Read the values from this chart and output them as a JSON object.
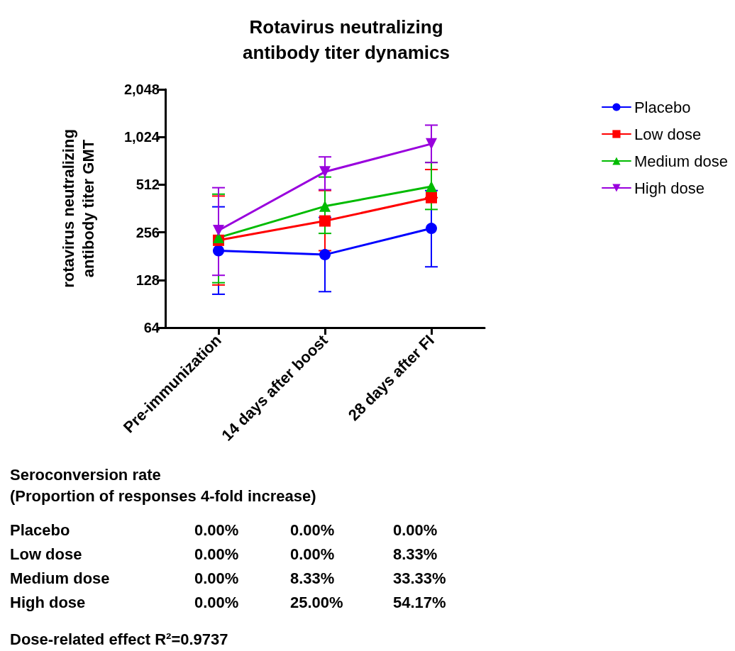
{
  "chart_data": {
    "type": "line",
    "title": "Rotavirus neutralizing\nantibody titer dynamics",
    "ylabel": "rotavirus neutralizing\nantibody titer GMT",
    "categories": [
      "Pre-immunization",
      "14 days after boost",
      "28 days after FI"
    ],
    "series": [
      {
        "name": "Placebo",
        "color": "#0000ff",
        "marker": "circle",
        "values": [
          196,
          185,
          271
        ],
        "errors": [
          [
            104,
            371
          ],
          [
            108,
            318
          ],
          [
            155,
            470
          ]
        ]
      },
      {
        "name": "Low dose",
        "color": "#ff0000",
        "marker": "square",
        "values": [
          228,
          302,
          424
        ],
        "errors": [
          [
            119,
            434
          ],
          [
            196,
            470
          ],
          [
            424,
            638
          ]
        ]
      },
      {
        "name": "Medium dose",
        "color": "#00bb00",
        "marker": "triangle",
        "values": [
          237,
          374,
          498
        ],
        "errors": [
          [
            123,
            446
          ],
          [
            252,
            572
          ],
          [
            357,
            708
          ]
        ]
      },
      {
        "name": "High dose",
        "color": "#9900dd",
        "marker": "triangle_down",
        "values": [
          263,
          617,
          927
        ],
        "errors": [
          [
            137,
            490
          ],
          [
            476,
            767
          ],
          [
            706,
            1217
          ]
        ]
      }
    ],
    "log": "y",
    "ylim": [
      64,
      2048
    ],
    "yticks": [
      64,
      128,
      256,
      {
        "value": 512,
        "label": "512"
      },
      {
        "value": 1024,
        "label": "1,024"
      },
      {
        "value": 2048,
        "label": "2,048"
      }
    ],
    "legend": "top right",
    "grid": false,
    "annotations": [
      "Seroconversion rate",
      "(Proportion of responses 4-fold increase)",
      "Placebo",
      "0.00%",
      "0.00%",
      "0.00%",
      "Low dose",
      "0.00%",
      "0.00%",
      "8.33%",
      "Medium dose",
      "0.00%",
      "8.33%",
      "33.33%",
      "High dose",
      "0.00%",
      "25.00%",
      "54.17%",
      "Dose-related effect R²=0.9737"
    ]
  }
}
